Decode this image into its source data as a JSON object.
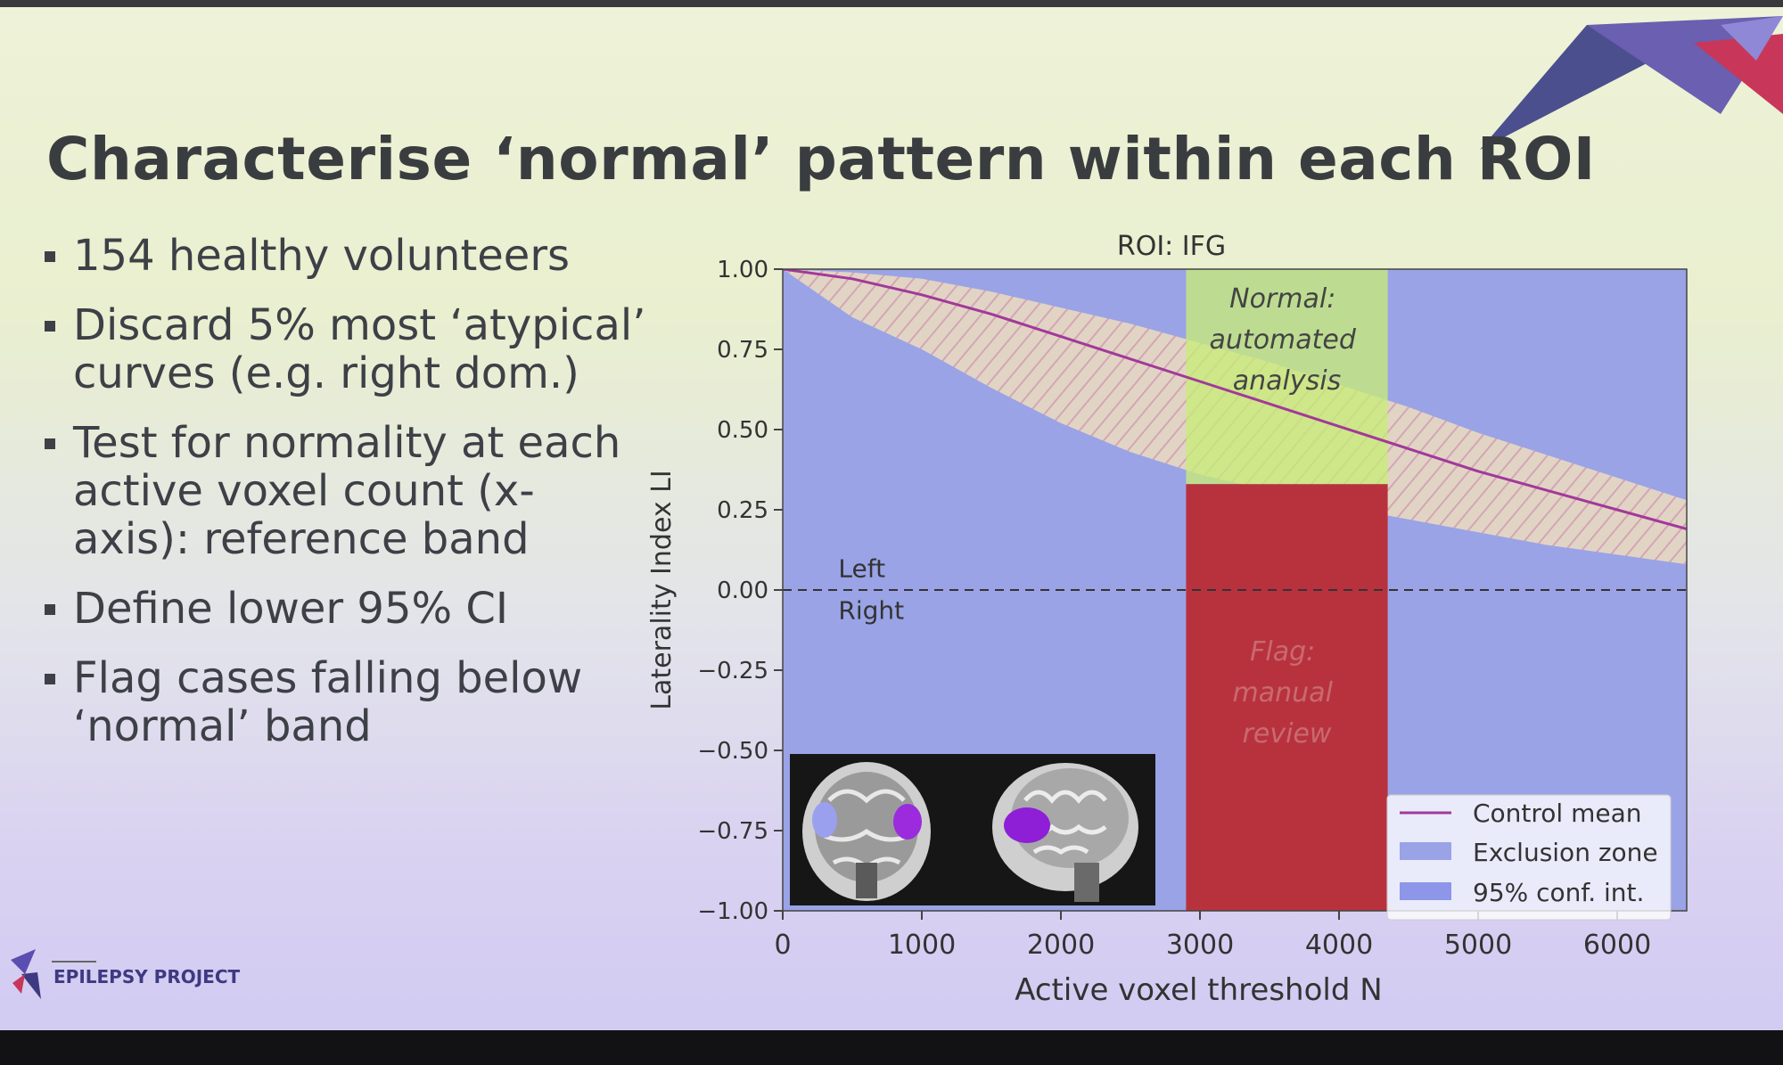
{
  "slide": {
    "title": "Characterise ‘normal’ pattern within each ROI",
    "bullets": [
      "154 healthy volunteers",
      "Discard 5% most ‘atypical’ curves (e.g. right dom.)",
      "Test for normality at each active voxel count (x-axis): reference band",
      "Define lower 95% CI",
      "Flag cases falling below ‘normal’ band"
    ],
    "logo_text": "EPILEPSY PROJECT"
  },
  "colors": {
    "exclusion": "#9aa3e6",
    "ci_band": "#e2d2b8",
    "green_zone": "#c8ec78",
    "red_zone": "#b8323e",
    "mean_line": "#a2399a"
  },
  "chart_data": {
    "type": "line",
    "title": "ROI: IFG",
    "xlabel": "Active voxel threshold N",
    "ylabel": "Laterality Index LI",
    "xlim": [
      0,
      6500
    ],
    "ylim": [
      -1.0,
      1.0
    ],
    "x_ticks": [
      "0",
      "1000",
      "2000",
      "3000",
      "4000",
      "5000",
      "6000"
    ],
    "y_ticks": [
      "−1.00",
      "−0.75",
      "−0.50",
      "−0.25",
      "0.00",
      "0.25",
      "0.50",
      "0.75",
      "1.00"
    ],
    "series": [
      {
        "name": "Control mean",
        "x": [
          0,
          500,
          1000,
          1500,
          2000,
          2500,
          3000,
          3500,
          4000,
          4500,
          5000,
          5500,
          6000,
          6500
        ],
        "y": [
          1.0,
          0.97,
          0.92,
          0.86,
          0.79,
          0.72,
          0.65,
          0.58,
          0.51,
          0.44,
          0.37,
          0.31,
          0.25,
          0.19
        ]
      },
      {
        "name": "95% conf. int.",
        "x": [
          0,
          500,
          1000,
          1500,
          2000,
          2500,
          3000,
          3500,
          4000,
          4500,
          5000,
          5500,
          6000,
          6500
        ],
        "upper": [
          1.0,
          0.99,
          0.97,
          0.93,
          0.88,
          0.83,
          0.77,
          0.71,
          0.64,
          0.57,
          0.49,
          0.42,
          0.35,
          0.28
        ],
        "lower": [
          1.0,
          0.85,
          0.75,
          0.63,
          0.52,
          0.43,
          0.36,
          0.31,
          0.26,
          0.22,
          0.18,
          0.14,
          0.11,
          0.08
        ]
      },
      {
        "name": "Exclusion zone",
        "note": "region below lower 95% CI"
      }
    ],
    "zones": [
      {
        "label_lines": [
          "Normal:",
          "automated",
          "analysis"
        ],
        "x_range": [
          2900,
          4350
        ],
        "y_range": [
          0.33,
          1.0
        ]
      },
      {
        "label_lines": [
          "Flag:",
          "manual",
          "review"
        ],
        "x_range": [
          2900,
          4350
        ],
        "y_range": [
          -1.0,
          0.33
        ]
      }
    ],
    "annotations": [
      {
        "text": "Left",
        "x": 400,
        "y": 0.04
      },
      {
        "text": "Right",
        "x": 400,
        "y": -0.09
      }
    ],
    "reference_line": {
      "y": 0.0,
      "style": "dashed"
    },
    "legend": {
      "position": "lower-right",
      "entries": [
        "Control mean",
        "Exclusion zone",
        "95% conf. int."
      ]
    }
  }
}
